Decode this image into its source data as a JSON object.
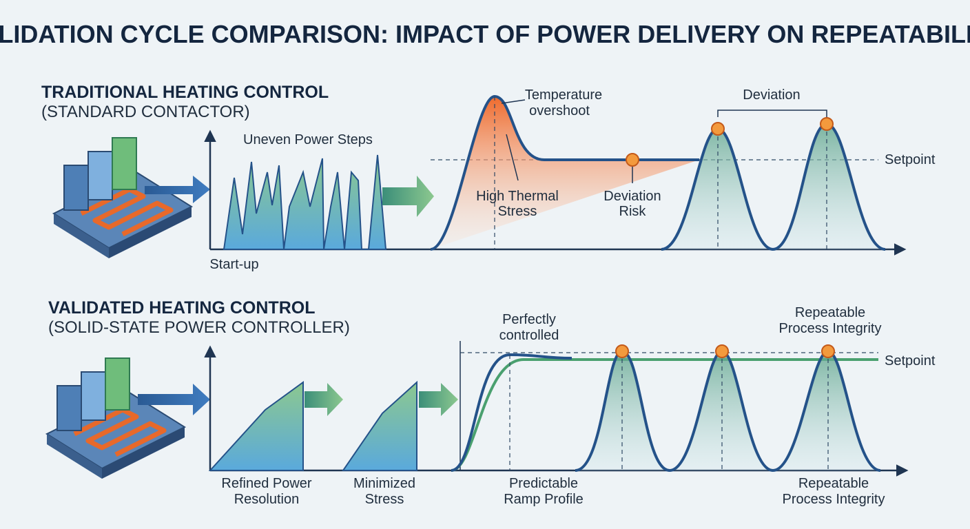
{
  "title": "VALIDATION CYCLE COMPARISON: IMPACT OF POWER DELIVERY ON REPEATABILITY",
  "panels": [
    {
      "heading": "TRADITIONAL HEATING CONTROL",
      "subheading": "(STANDARD CONTACTOR)",
      "power_label": "Uneven Power Steps",
      "start_label": "Start-up",
      "overshoot_label": [
        "Temperature",
        "overshoot"
      ],
      "stress_label": [
        "High Thermal",
        "Stress"
      ],
      "risk_label": [
        "Deviation",
        "Risk"
      ],
      "deviation_label": "Deviation",
      "setpoint_label": "Setpoint"
    },
    {
      "heading": "VALIDATED HEATING CONTROL",
      "subheading": "(SOLID-STATE POWER CONTROLLER)",
      "controlled_label": [
        "Perfectly",
        "controlled"
      ],
      "repeatable_top_label": [
        "Repeatable",
        "Process Integrity"
      ],
      "setpoint_label": "Setpoint",
      "resolution_label": [
        "Refined Power",
        "Resolution"
      ],
      "stress_label": [
        "Minimized",
        "Stress"
      ],
      "ramp_label": [
        "Predictable",
        "Ramp Profile"
      ],
      "repeatable_bottom_label": [
        "Repeatable",
        "Process Integrity"
      ]
    }
  ]
}
